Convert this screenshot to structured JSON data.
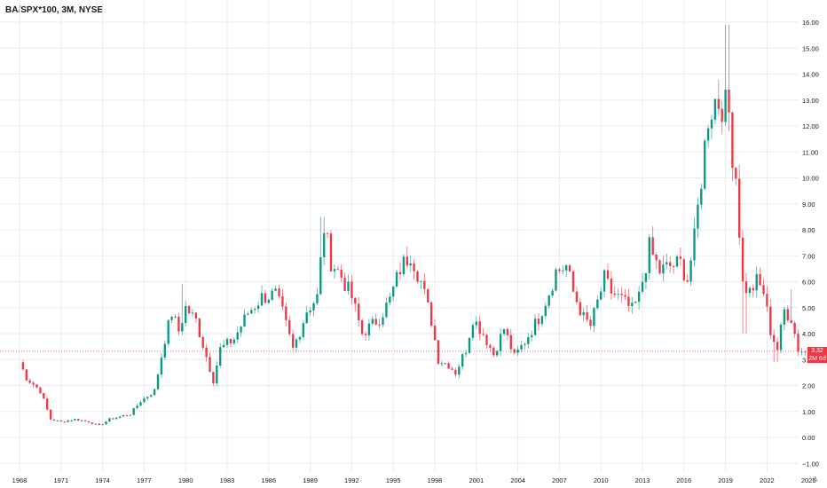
{
  "header": {
    "title": "BA/SPX*100, 3M, NYSE"
  },
  "price_badge": {
    "value": "3.32",
    "countdown": "2M 6d"
  },
  "corner_button": {
    "label": "A"
  },
  "colors": {
    "up": "#089981",
    "down": "#f23645",
    "grid": "#e9ebf0",
    "text": "#131722",
    "last_price_line": "#f23645"
  },
  "chart_data": {
    "type": "candlestick",
    "title": "BA/SPX*100, 3M, NYSE",
    "ylim": [
      -1.2,
      16.2
    ],
    "y_ticks": [
      "−1.00",
      "0.00",
      "1.00",
      "2.00",
      "3.00",
      "4.00",
      "5.00",
      "6.00",
      "7.00",
      "8.00",
      "9.00",
      "10.00",
      "11.00",
      "12.00",
      "13.00",
      "14.00",
      "15.00",
      "16.00"
    ],
    "x_ticks": [
      "1968",
      "1971",
      "1974",
      "1977",
      "1980",
      "1983",
      "1986",
      "1989",
      "1992",
      "1995",
      "1998",
      "2001",
      "2004",
      "2007",
      "2010",
      "2013",
      "2016",
      "2019",
      "2022",
      "2025"
    ],
    "grid": true,
    "last_price": 3.32,
    "anchors": [
      [
        1968.0,
        2.9
      ],
      [
        1968.5,
        2.3
      ],
      [
        1969.5,
        1.8
      ],
      [
        1970.25,
        0.7
      ],
      [
        1971.0,
        0.6
      ],
      [
        1972.0,
        0.7
      ],
      [
        1973.0,
        0.6
      ],
      [
        1973.75,
        0.45
      ],
      [
        1974.5,
        0.7
      ],
      [
        1976.0,
        0.9
      ],
      [
        1976.75,
        1.4
      ],
      [
        1977.75,
        1.8
      ],
      [
        1978.5,
        3.8
      ],
      [
        1979.0,
        4.8
      ],
      [
        1979.5,
        4.1
      ],
      [
        1980.0,
        5.0
      ],
      [
        1980.75,
        4.5
      ],
      [
        1982.0,
        2.2
      ],
      [
        1982.5,
        3.4
      ],
      [
        1983.5,
        3.8
      ],
      [
        1984.5,
        4.8
      ],
      [
        1985.5,
        5.4
      ],
      [
        1986.5,
        5.5
      ],
      [
        1987.0,
        4.8
      ],
      [
        1987.75,
        3.4
      ],
      [
        1988.25,
        4.1
      ],
      [
        1988.75,
        4.9
      ],
      [
        1989.5,
        5.4
      ],
      [
        1990.0,
        8.1
      ],
      [
        1990.5,
        6.8
      ],
      [
        1991.25,
        6.2
      ],
      [
        1992.0,
        5.4
      ],
      [
        1992.75,
        4.0
      ],
      [
        1994.0,
        4.6
      ],
      [
        1994.75,
        5.3
      ],
      [
        1995.5,
        6.5
      ],
      [
        1996.25,
        7.1
      ],
      [
        1997.0,
        6.0
      ],
      [
        1997.75,
        4.5
      ],
      [
        1998.25,
        3.0
      ],
      [
        1999.0,
        2.8
      ],
      [
        1999.5,
        2.5
      ],
      [
        2000.25,
        3.4
      ],
      [
        2000.75,
        4.6
      ],
      [
        2001.5,
        4.0
      ],
      [
        2002.25,
        3.2
      ],
      [
        2003.0,
        4.2
      ],
      [
        2003.75,
        3.1
      ],
      [
        2004.5,
        3.7
      ],
      [
        2005.5,
        4.6
      ],
      [
        2006.25,
        5.6
      ],
      [
        2006.75,
        6.4
      ],
      [
        2007.5,
        6.6
      ],
      [
        2008.0,
        5.6
      ],
      [
        2008.75,
        4.6
      ],
      [
        2009.25,
        4.3
      ],
      [
        2009.75,
        5.2
      ],
      [
        2010.25,
        6.1
      ],
      [
        2010.75,
        5.6
      ],
      [
        2011.5,
        5.3
      ],
      [
        2012.25,
        4.9
      ],
      [
        2012.75,
        5.4
      ],
      [
        2013.5,
        7.3
      ],
      [
        2014.25,
        6.4
      ],
      [
        2015.0,
        6.6
      ],
      [
        2015.75,
        6.7
      ],
      [
        2016.25,
        6.1
      ],
      [
        2016.75,
        7.6
      ],
      [
        2017.25,
        10.0
      ],
      [
        2017.75,
        12.4
      ],
      [
        2018.25,
        13.0
      ],
      [
        2018.75,
        12.9
      ],
      [
        2019.25,
        12.5
      ],
      [
        2019.5,
        11.0
      ],
      [
        2019.75,
        10.1
      ],
      [
        2020.25,
        5.9
      ],
      [
        2020.75,
        5.6
      ],
      [
        2021.25,
        6.0
      ],
      [
        2021.75,
        5.6
      ],
      [
        2022.25,
        4.1
      ],
      [
        2022.75,
        3.4
      ],
      [
        2023.25,
        4.9
      ],
      [
        2023.75,
        4.6
      ],
      [
        2024.25,
        3.4
      ],
      [
        2024.75,
        3.32
      ]
    ],
    "wicks": [
      [
        1979.75,
        5.9
      ],
      [
        1989.875,
        8.5
      ],
      [
        2019.125,
        15.9
      ],
      [
        2020.0,
        10.5
      ],
      [
        2020.375,
        4.0
      ],
      [
        2022.625,
        2.9
      ],
      [
        2023.75,
        5.7
      ]
    ]
  }
}
